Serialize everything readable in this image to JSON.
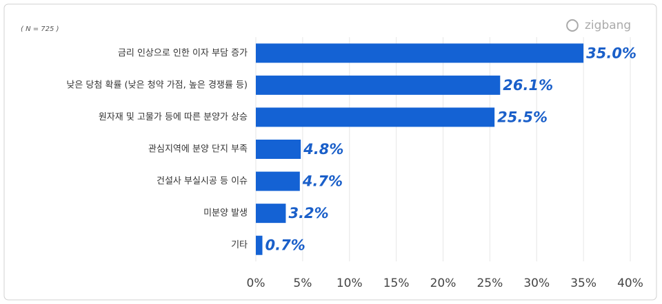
{
  "chart_data": {
    "type": "bar",
    "orientation": "horizontal",
    "annotation": "( N = 725 )",
    "logo": "zigbang",
    "categories": [
      "금리 인상으로 인한 이자 부담 증가",
      "낮은 당첨 확률 (낮은 청약 가점, 높은 경쟁률 등)",
      "원자재 및 고물가 등에 따른 분양가 상승",
      "관심지역에 분양 단지 부족",
      "건설사 부실시공 등 이슈",
      "미분양 발생",
      "기타"
    ],
    "values": [
      35.0,
      26.1,
      25.5,
      4.8,
      4.7,
      3.2,
      0.7
    ],
    "value_labels": [
      "35.0%",
      "26.1%",
      "25.5%",
      "4.8%",
      "4.7%",
      "3.2%",
      "0.7%"
    ],
    "color": "#1462d4",
    "xlim": [
      0,
      40
    ],
    "xticks": [
      {
        "value": 0,
        "label": "0%"
      },
      {
        "value": 5,
        "label": "5%"
      },
      {
        "value": 10,
        "label": "10%"
      },
      {
        "value": 15,
        "label": "15%"
      },
      {
        "value": 20,
        "label": "20%"
      },
      {
        "value": 25,
        "label": "25%"
      },
      {
        "value": 30,
        "label": "30%"
      },
      {
        "value": 35,
        "label": "35%"
      },
      {
        "value": 40,
        "label": "40%"
      }
    ],
    "grid": true
  }
}
